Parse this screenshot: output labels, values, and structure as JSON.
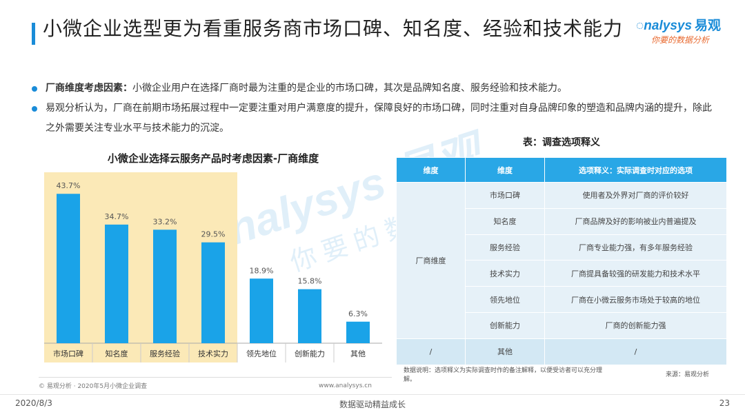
{
  "slide": {
    "title": "小微企业选型更为看重服务商市场口碑、知名度、经验和技术能力",
    "logo_text": "nalysys",
    "logo_cn": "易观",
    "logo_sub": "你要的数据分析",
    "bullets": [
      {
        "bold": "厂商维度考虑因素：",
        "text": "小微企业用户在选择厂商时最为注重的是企业的市场口碑，其次是品牌知名度、服务经验和技术能力。"
      },
      {
        "bold": "",
        "text": "易观分析认为，厂商在前期市场拓展过程中一定要注重对用户满意度的提升，保障良好的市场口碑，同时注重对自身品牌印象的塑造和品牌内涵的提升，除此之外需要关注专业水平与技术能力的沉淀。"
      }
    ],
    "chart_source": "© 易观分析 · 2020年5月小微企业调查",
    "chart_url": "www.analysys.cn",
    "footer": {
      "date": "2020/8/3",
      "center": "数据驱动精益成长",
      "page": "23"
    },
    "watermark_en": "nalysys 易观",
    "watermark_cn": "你要的数据分析"
  },
  "chart_data": {
    "type": "bar",
    "title": "小微企业选择云服务产品时考虑因素-厂商维度",
    "categories": [
      "市场口碑",
      "知名度",
      "服务经验",
      "技术实力",
      "领先地位",
      "创新能力",
      "其他"
    ],
    "values": [
      43.7,
      34.7,
      33.2,
      29.5,
      18.9,
      15.8,
      6.3
    ],
    "labels": [
      "43.7%",
      "34.7%",
      "33.2%",
      "29.5%",
      "18.9%",
      "15.8%",
      "6.3%"
    ],
    "highlighted": [
      "市场口碑",
      "知名度",
      "服务经验",
      "技术实力"
    ],
    "ylim": [
      0,
      50
    ],
    "grid": false,
    "colors": {
      "bar": "#1aa3e8",
      "highlight_bg": "#fbe9b7",
      "value_label": "#555555"
    }
  },
  "table": {
    "title": "表：调查选项释义",
    "headers": [
      "维度",
      "维度",
      "选项释义：实际调查时对应的选项"
    ],
    "group_label": "厂商维度",
    "rows": [
      {
        "item": "市场口碑",
        "desc": "使用者及外界对厂商的评价较好"
      },
      {
        "item": "知名度",
        "desc": "厂商品牌及好的影响被业内普遍提及"
      },
      {
        "item": "服务经验",
        "desc": "厂商专业能力强，有多年服务经验"
      },
      {
        "item": "技术实力",
        "desc": "厂商提具备较强的研发能力和技术水平"
      },
      {
        "item": "领先地位",
        "desc": "厂商在小微云服务市场处于较高的地位"
      },
      {
        "item": "创新能力",
        "desc": "厂商的创新能力强"
      }
    ],
    "other_row": {
      "group": "/",
      "item": "其他",
      "desc": "/"
    },
    "note": "数据说明：选项释义为实际调查时作的备注解释，以便受访者可以充分理解。",
    "source": "来源：易观分析"
  }
}
